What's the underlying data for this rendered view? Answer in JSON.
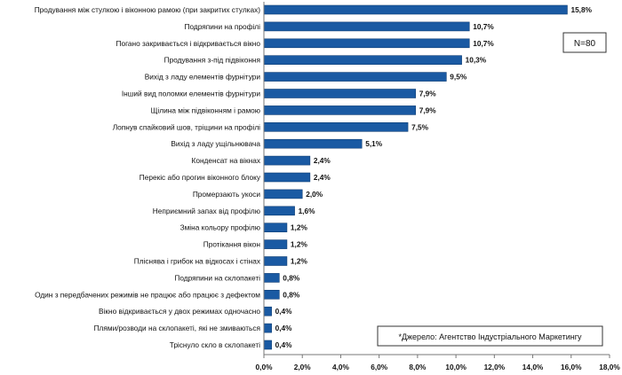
{
  "chart_data": {
    "type": "bar",
    "orientation": "horizontal",
    "categories": [
      "Продування між стулкою і віконною рамою (при закритих стулках)",
      "Подряпини на профілі",
      "Погано закривається і відкривається вікно",
      "Продування з-під підвіконня",
      "Вихід з ладу елементів фурнітури",
      "Інший вид поломки елементів фурнітури",
      "Щілина між підвіконням і рамою",
      "Лопнув спайковий шов, тріщини на профілі",
      "Вихід з ладу ущільнювача",
      "Конденсат на вікнах",
      "Перекіс або прогин віконного блоку",
      "Промерзають укоси",
      "Неприємний запах від профілю",
      "Зміна кольору профілю",
      "Протікання вікон",
      "Пліснява і грибок на відкосах і стінах",
      "Подряпини на склопакеті",
      "Один з передбачених режимів не працює або працює з дефектом",
      "Вікно відкривається у двох режимах одночасно",
      "Плями/розводи на склопакеті, які не змиваються",
      "Тріснуло скло в склопакеті"
    ],
    "values": [
      15.8,
      10.7,
      10.7,
      10.3,
      9.5,
      7.9,
      7.9,
      7.5,
      5.1,
      2.4,
      2.4,
      2.0,
      1.6,
      1.2,
      1.2,
      1.2,
      0.8,
      0.8,
      0.4,
      0.4,
      0.4
    ],
    "value_labels": [
      "15,8%",
      "10,7%",
      "10,7%",
      "10,3%",
      "9,5%",
      "7,9%",
      "7,9%",
      "7,5%",
      "5,1%",
      "2,4%",
      "2,4%",
      "2,0%",
      "1,6%",
      "1,2%",
      "1,2%",
      "1,2%",
      "0,8%",
      "0,8%",
      "0,4%",
      "0,4%",
      "0,4%"
    ],
    "xlim": [
      0,
      18
    ],
    "x_ticks": [
      0,
      2,
      4,
      6,
      8,
      10,
      12,
      14,
      16,
      18
    ],
    "x_tick_labels": [
      "0,0%",
      "2,0%",
      "4,0%",
      "6,0%",
      "8,0%",
      "10,0%",
      "12,0%",
      "14,0%",
      "16,0%",
      "18,0%"
    ],
    "grid": false,
    "bar_color": "#1a5aa3",
    "annotations": {
      "sample_size": "N=80",
      "source": "*Джерело: Агентство Індустріального Маркетингу"
    }
  }
}
